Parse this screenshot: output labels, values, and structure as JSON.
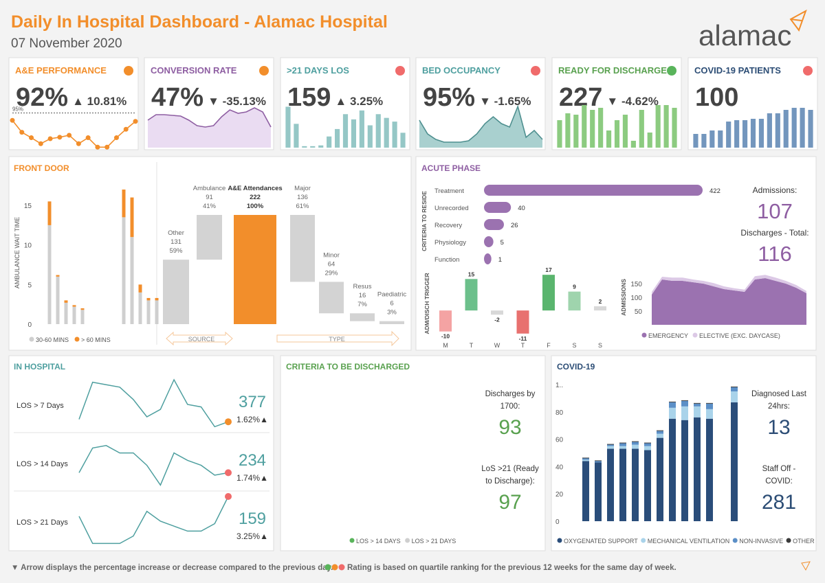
{
  "header": {
    "title": "Daily In Hospital Dashboard - Alamac Hospital",
    "date": "07 November 2020",
    "logo": "alamac"
  },
  "kpis": [
    {
      "title": "A&E PERFORMANCE",
      "title_color": "#f28e2b",
      "status_color": "#f28e2b",
      "value": "92%",
      "change": "▲ 10.81%",
      "chart": {
        "type": "line",
        "color": "#f28e2b",
        "values": [
          93.5,
          91.1,
          90,
          88.8,
          89.8,
          90.1,
          90.5,
          88.8,
          90,
          88.1,
          88.1,
          90,
          91.7,
          93.3
        ],
        "ylim": [
          88,
          97
        ],
        "target": 95,
        "target_label": "95%"
      }
    },
    {
      "title": "CONVERSION RATE",
      "title_color": "#8e5ea2",
      "status_color": "#f28e2b",
      "value": "47%",
      "change": "▼ -35.13%",
      "chart": {
        "type": "area",
        "color": "#8e5ea2",
        "fill": "#eadcf2",
        "values": [
          40,
          48,
          48,
          47,
          46,
          40,
          32,
          30,
          32,
          45,
          55,
          50,
          52,
          58,
          52,
          30
        ],
        "ylim": [
          0,
          65
        ]
      }
    },
    {
      "title": ">21 DAYS LOS",
      "title_color": "#4e9f9f",
      "status_color": "#f06b6b",
      "value": "159",
      "change": "▲ 3.25%",
      "chart": {
        "type": "bar",
        "color": "#95c7c6",
        "values": [
          55,
          32,
          2,
          2,
          3,
          15,
          25,
          45,
          38,
          50,
          30,
          45,
          40,
          35,
          20
        ],
        "ylim": [
          0,
          60
        ]
      }
    },
    {
      "title": "BED OCCUPANCY",
      "title_color": "#4e9f9f",
      "status_color": "#f06b6b",
      "value": "95%",
      "change": "▼ -1.65%",
      "chart": {
        "type": "area",
        "color": "#4e8f8f",
        "fill": "#a9d0cf",
        "values": [
          40,
          20,
          12,
          8,
          8,
          8,
          10,
          20,
          35,
          45,
          35,
          30,
          60,
          15,
          25,
          12
        ],
        "ylim": [
          0,
          65
        ]
      }
    },
    {
      "title": "READY FOR DISCHARGE",
      "title_color": "#59a14f",
      "status_color": "#59b45b",
      "value": "227",
      "change": "▼ -4.62%",
      "chart": {
        "type": "bar",
        "color": "#8ccb80",
        "values": [
          40,
          50,
          48,
          62,
          55,
          58,
          25,
          40,
          48,
          10,
          55,
          22,
          62,
          62,
          58
        ],
        "ylim": [
          0,
          65
        ]
      }
    },
    {
      "title": "COVID-19 PATIENTS",
      "title_color": "#2c4d75",
      "status_color": "#f06b6b",
      "value": "100",
      "chart": {
        "type": "bar",
        "color": "#7396bd",
        "values": [
          20,
          20,
          25,
          25,
          38,
          40,
          40,
          42,
          42,
          50,
          50,
          55,
          58,
          58,
          55
        ],
        "ylim": [
          0,
          65
        ]
      }
    }
  ],
  "front_door": {
    "title": "FRONT DOOR",
    "wait_chart": {
      "type": "bar",
      "ylabel": "AMBULANCE WAIT TIME",
      "ylim": [
        0,
        18
      ],
      "yticks": [
        0,
        5,
        10,
        15
      ],
      "categories": [
        null,
        null,
        null,
        null,
        null,
        null,
        null,
        null,
        null,
        null,
        null,
        null,
        null,
        null
      ],
      "series": [
        {
          "name": "30-60 MINS",
          "color": "#cfcfcf",
          "values": [
            12.5,
            6,
            2.7,
            2.2,
            1.8,
            0,
            0,
            0,
            0,
            13.5,
            11,
            4,
            3,
            3
          ]
        },
        {
          "name": "> 60 MINS",
          "color": "#f28e2b",
          "values": [
            3,
            0.2,
            0.3,
            0.2,
            0.2,
            0,
            0,
            0,
            0,
            3.5,
            5,
            1,
            0.3,
            0.3
          ]
        }
      ]
    },
    "waterfall": {
      "type": "waterfall",
      "ylim": [
        0,
        222
      ],
      "sources": [
        {
          "name": "Other",
          "value": 131,
          "pct": "59%"
        },
        {
          "name": "Ambulance",
          "value": 91,
          "pct": "41%"
        }
      ],
      "total": {
        "name": "A&E Attendances",
        "value": 222,
        "pct": "100%"
      },
      "types": [
        {
          "name": "Major",
          "value": 136,
          "pct": "61%"
        },
        {
          "name": "Minor",
          "value": 64,
          "pct": "29%"
        },
        {
          "name": "Resus",
          "value": 16,
          "pct": "7%"
        },
        {
          "name": "Paediatric",
          "value": 6,
          "pct": "3%"
        }
      ],
      "source_label": "SOURCE",
      "type_label": "TYPE"
    }
  },
  "acute_phase": {
    "title": "ACUTE PHASE",
    "reside": {
      "type": "hbar",
      "ylabel": "CRITERIA TO RESIDE",
      "color": "#9b72b0",
      "xlim": [
        0,
        422
      ],
      "categories": [
        "Treatment",
        "Unrecorded",
        "Recovery",
        "Physiology",
        "Function"
      ],
      "values": [
        422,
        40,
        26,
        5,
        1
      ]
    },
    "admissions_label": "Admissions:",
    "admissions": 107,
    "discharges_label": "Discharges - Total:",
    "discharges": 116,
    "trigger": {
      "type": "bar",
      "ylabel": "ADM/DISCH TRIGGER",
      "ylim": [
        -15,
        20
      ],
      "categories": [
        "M",
        "T",
        "W",
        "T",
        "F",
        "S",
        "S"
      ],
      "values": [
        -10,
        15,
        -2,
        -11,
        17,
        9,
        2
      ],
      "colors": [
        "#f4a3a3",
        "#6cc08b",
        "#d8d8d8",
        "#e8716f",
        "#5ab56e",
        "#9fd4ad",
        "#d8d8d8"
      ]
    },
    "admissions_chart": {
      "type": "area",
      "ylabel": "ADMISSIONS",
      "ylim": [
        0,
        190
      ],
      "yticks": [
        50,
        100,
        150
      ],
      "series": [
        {
          "name": "EMERGENCY",
          "color": "#9b72b0",
          "values": [
            110,
            165,
            160,
            160,
            155,
            150,
            140,
            130,
            125,
            120,
            165,
            170,
            160,
            150,
            135,
            115
          ]
        },
        {
          "name": "ELECTIVE (EXC. DAYCASE)",
          "color": "#dcc9e6",
          "values": [
            10,
            10,
            12,
            12,
            10,
            10,
            12,
            10,
            8,
            8,
            12,
            12,
            12,
            10,
            10,
            8
          ]
        }
      ]
    }
  },
  "in_hospital": {
    "title": "IN HOSPITAL",
    "color": "#4e9f9f",
    "ylim": [
      0,
      100
    ],
    "rows": [
      {
        "label": "LOS > 7 Days",
        "value": 377,
        "change": "1.62%▲",
        "status_color": "#f28e2b",
        "values": [
          20,
          95,
          90,
          85,
          60,
          25,
          40,
          100,
          50,
          45,
          5,
          15
        ]
      },
      {
        "label": "LOS > 14 Days",
        "value": 234,
        "change": "1.74%▲",
        "status_color": "#f06b6b",
        "values": [
          30,
          80,
          85,
          70,
          70,
          45,
          5,
          70,
          55,
          45,
          25,
          30
        ]
      },
      {
        "label": "LOS > 21 Days",
        "value": 159,
        "change": "3.25%▲",
        "status_color": "#f06b6b",
        "values": [
          60,
          5,
          5,
          5,
          20,
          70,
          50,
          40,
          30,
          30,
          45,
          100
        ]
      }
    ]
  },
  "criteria": {
    "title": "CRITERIA TO BE DISCHARGED",
    "discharges_label": [
      "Discharges by",
      "1700:"
    ],
    "discharges": 93,
    "los_label": [
      "LoS >21 (Ready",
      "to Discharge):"
    ],
    "los": 97,
    "legend": [
      {
        "name": "LOS > 14 DAYS",
        "color": "#59b45b"
      },
      {
        "name": "LOS > 21 DAYS",
        "color": "#cfcfcf"
      }
    ]
  },
  "covid": {
    "title": "COVID-19",
    "chart": {
      "type": "bar",
      "ylim": [
        0,
        100
      ],
      "yticks": [
        0,
        20,
        40,
        60,
        80,
        {
          "value": 100,
          "label": "1.."
        }
      ],
      "categories": [
        null,
        null,
        null,
        null,
        null,
        null,
        null,
        null,
        null,
        null,
        null,
        null,
        null
      ],
      "series": [
        {
          "name": "OXYGENATED SUPPORT",
          "color": "#2a4d7a",
          "values": [
            44,
            43,
            53,
            53,
            53,
            52,
            61,
            75,
            74,
            76,
            75,
            null,
            87
          ]
        },
        {
          "name": "MECHANICAL VENTILATION",
          "color": "#a9d3ea",
          "values": [
            1,
            0,
            2,
            2,
            3,
            3,
            3,
            8,
            10,
            8,
            7,
            null,
            8
          ]
        },
        {
          "name": "NON-INVASIVE",
          "color": "#5b8fc7",
          "values": [
            1,
            1,
            1,
            2,
            2,
            2,
            2,
            4,
            4,
            2,
            4,
            null,
            3
          ]
        },
        {
          "name": "OTHER",
          "color": "#3a3a3a",
          "values": [
            0.5,
            0.5,
            0.5,
            0.5,
            0.5,
            0.5,
            0.5,
            0.5,
            0.5,
            0.5,
            0.5,
            null,
            0.5
          ]
        }
      ]
    },
    "diagnosed_label": [
      "Diagnosed Last",
      "24hrs:"
    ],
    "diagnosed": 13,
    "staff_label": [
      "Staff Off -",
      "COVID:"
    ],
    "staff": 281
  },
  "footer": {
    "arrow_note": "▼ Arrow displays the percentage increase or decrease compared to the previous day.",
    "rating_note": "Rating is based on quartile ranking for the previous 12 weeks for the same day of week."
  }
}
